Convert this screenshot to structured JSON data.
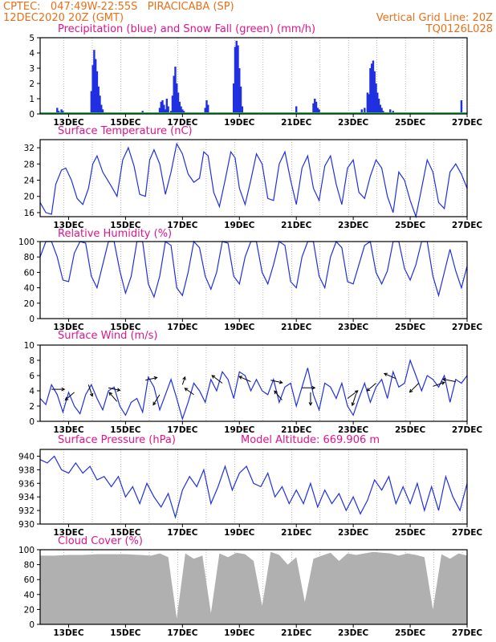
{
  "header": {
    "line1_left": "CPTEC:   047:49W-22:55S   PIRACICABA (SP)",
    "line2_left": "12DEC2020 20Z (GMT)",
    "line2_right": "Vertical Grid Line: 20Z",
    "line3_right": "TQ0126L028"
  },
  "colors": {
    "header": "#e8701a",
    "title": "#e0148c",
    "line": "#2030e0",
    "snow": "#22b14c",
    "cloud": "#b0b0b0",
    "grid": "#888888"
  },
  "x_ticks": [
    "13DEC",
    "15DEC",
    "17DEC",
    "19DEC",
    "21DEC",
    "23DEC",
    "25DEC",
    "27DEC"
  ],
  "chart_data": [
    {
      "type": "bar",
      "title": "Precipitation (blue) and Snow Fall (green) (mm/h)",
      "ylim": [
        0,
        5
      ],
      "yticks": [
        "0",
        "1",
        "2",
        "3",
        "4",
        "5"
      ],
      "series": [
        {
          "name": "Precipitation",
          "x": [
            12.6,
            12.65,
            12.7,
            12.75,
            12.8,
            13.8,
            13.85,
            13.9,
            13.95,
            14.0,
            14.05,
            14.1,
            14.15,
            14.2,
            15.6,
            16.2,
            16.25,
            16.3,
            16.35,
            16.4,
            16.45,
            16.5,
            16.6,
            16.65,
            16.7,
            16.75,
            16.8,
            16.85,
            16.9,
            16.95,
            17.0,
            17.05,
            17.8,
            17.85,
            17.9,
            18.8,
            18.85,
            18.9,
            18.95,
            19.0,
            19.05,
            19.1,
            21.0,
            21.6,
            21.65,
            21.7,
            21.75,
            21.8,
            23.3,
            23.4,
            23.5,
            23.55,
            23.6,
            23.65,
            23.7,
            23.75,
            23.8,
            23.85,
            23.9,
            23.95,
            24.0,
            24.05,
            24.3,
            24.4,
            26.8
          ],
          "values": [
            0.4,
            0.2,
            0.1,
            0.3,
            0.2,
            1.5,
            3.2,
            4.2,
            3.6,
            2.8,
            1.8,
            1.2,
            0.6,
            0.3,
            0.2,
            0.4,
            0.8,
            0.9,
            0.6,
            0.3,
            1.0,
            0.5,
            0.2,
            1.2,
            2.5,
            3.1,
            2.0,
            1.4,
            0.8,
            0.5,
            0.3,
            0.2,
            0.4,
            0.9,
            0.6,
            2.0,
            4.4,
            4.8,
            4.5,
            3.0,
            1.8,
            0.5,
            0.5,
            0.7,
            1.0,
            0.8,
            0.4,
            0.3,
            0.3,
            0.4,
            1.4,
            1.3,
            3.0,
            3.3,
            3.5,
            2.8,
            2.0,
            1.4,
            1.0,
            0.6,
            0.4,
            0.2,
            0.3,
            0.2,
            0.9
          ]
        },
        {
          "name": "Snow Fall",
          "values": [
            0.1
          ]
        }
      ]
    },
    {
      "type": "line",
      "title": "Surface Temperature (nC)",
      "ylim": [
        15,
        34
      ],
      "yticks": [
        "16",
        "20",
        "24",
        "28",
        "32"
      ],
      "series": [
        {
          "x": [
            12.0,
            12.2,
            12.4,
            12.55,
            12.75,
            12.9,
            13.1,
            13.3,
            13.5,
            13.7,
            13.85,
            14.0,
            14.2,
            14.5,
            14.7,
            14.9,
            15.1,
            15.3,
            15.5,
            15.7,
            15.85,
            16.0,
            16.2,
            16.4,
            16.6,
            16.8,
            17.0,
            17.2,
            17.4,
            17.6,
            17.75,
            17.9,
            18.1,
            18.3,
            18.5,
            18.7,
            18.85,
            19.0,
            19.2,
            19.4,
            19.6,
            19.8,
            20.0,
            20.2,
            20.4,
            20.6,
            20.8,
            21.0,
            21.2,
            21.4,
            21.6,
            21.8,
            22.0,
            22.2,
            22.4,
            22.6,
            22.8,
            23.0,
            23.2,
            23.4,
            23.6,
            23.8,
            24.0,
            24.2,
            24.4,
            24.6,
            24.8,
            25.0,
            25.2,
            25.4,
            25.6,
            25.8,
            26.0,
            26.2,
            26.4,
            26.6,
            26.8,
            27.0
          ],
          "values": [
            18.5,
            16.0,
            15.6,
            23.0,
            26.5,
            27.0,
            24.0,
            19.5,
            18.0,
            22.0,
            28.0,
            30.0,
            26.0,
            22.5,
            20.0,
            29.0,
            32.0,
            27.5,
            20.5,
            20.0,
            29.0,
            31.5,
            28.0,
            20.5,
            26.0,
            33.0,
            30.5,
            25.5,
            23.5,
            24.5,
            31.0,
            30.0,
            21.0,
            17.5,
            24.0,
            31.0,
            29.5,
            22.0,
            18.0,
            24.0,
            30.5,
            28.0,
            19.5,
            19.0,
            28.0,
            31.0,
            24.0,
            18.0,
            27.0,
            30.0,
            22.0,
            19.0,
            27.5,
            30.0,
            23.0,
            18.0,
            27.0,
            29.0,
            21.0,
            19.5,
            25.0,
            29.0,
            27.0,
            20.0,
            16.0,
            26.0,
            24.0,
            19.0,
            15.0,
            22.0,
            29.0,
            26.0,
            18.5,
            17.0,
            26.0,
            28.0,
            25.5,
            22.0
          ]
        }
      ]
    },
    {
      "type": "line",
      "title": "Relative Humidity (%)",
      "ylim": [
        0,
        100
      ],
      "yticks": [
        "0",
        "20",
        "40",
        "60",
        "80",
        "100"
      ],
      "series": [
        {
          "x": [
            12.0,
            12.2,
            12.4,
            12.6,
            12.8,
            13.0,
            13.2,
            13.4,
            13.6,
            13.8,
            14.0,
            14.2,
            14.4,
            14.6,
            14.8,
            15.0,
            15.2,
            15.4,
            15.6,
            15.8,
            16.0,
            16.2,
            16.4,
            16.6,
            16.8,
            17.0,
            17.2,
            17.4,
            17.6,
            17.8,
            18.0,
            18.2,
            18.4,
            18.6,
            18.8,
            19.0,
            19.2,
            19.4,
            19.6,
            19.8,
            20.0,
            20.2,
            20.4,
            20.6,
            20.8,
            21.0,
            21.2,
            21.4,
            21.6,
            21.8,
            22.0,
            22.2,
            22.4,
            22.6,
            22.8,
            23.0,
            23.2,
            23.4,
            23.6,
            23.8,
            24.0,
            24.2,
            24.4,
            24.6,
            24.8,
            25.0,
            25.2,
            25.4,
            25.6,
            25.8,
            26.0,
            26.2,
            26.4,
            26.6,
            26.8,
            27.0
          ],
          "values": [
            80,
            100,
            100,
            80,
            50,
            48,
            85,
            100,
            98,
            55,
            40,
            70,
            100,
            100,
            62,
            33,
            55,
            100,
            100,
            45,
            28,
            55,
            100,
            95,
            40,
            30,
            60,
            100,
            92,
            55,
            38,
            60,
            100,
            98,
            55,
            45,
            80,
            100,
            100,
            60,
            45,
            70,
            100,
            95,
            48,
            40,
            80,
            100,
            100,
            55,
            40,
            80,
            100,
            92,
            48,
            45,
            70,
            95,
            100,
            60,
            45,
            62,
            100,
            100,
            65,
            50,
            70,
            100,
            100,
            55,
            30,
            60,
            90,
            62,
            40,
            68
          ]
        }
      ]
    },
    {
      "type": "line",
      "title": "Surface Wind (m/s)",
      "ylim": [
        0,
        10
      ],
      "yticks": [
        "0",
        "2",
        "4",
        "6",
        "8",
        "10"
      ],
      "series": [
        {
          "x": [
            12.0,
            12.2,
            12.4,
            12.6,
            12.8,
            13.0,
            13.2,
            13.4,
            13.6,
            13.8,
            14.0,
            14.2,
            14.4,
            14.6,
            14.8,
            15.0,
            15.2,
            15.4,
            15.6,
            15.8,
            16.0,
            16.2,
            16.4,
            16.6,
            16.8,
            17.0,
            17.2,
            17.4,
            17.6,
            17.8,
            18.0,
            18.2,
            18.4,
            18.6,
            18.8,
            19.0,
            19.2,
            19.4,
            19.6,
            19.8,
            20.0,
            20.2,
            20.4,
            20.6,
            20.8,
            21.0,
            21.2,
            21.4,
            21.6,
            21.8,
            22.0,
            22.2,
            22.4,
            22.6,
            22.8,
            23.0,
            23.2,
            23.4,
            23.6,
            23.8,
            24.0,
            24.2,
            24.4,
            24.6,
            24.8,
            25.0,
            25.2,
            25.4,
            25.6,
            25.8,
            26.0,
            26.2,
            26.4,
            26.6,
            26.8,
            27.0
          ],
          "values": [
            3.0,
            2.2,
            4.8,
            3.5,
            1.2,
            3.8,
            2.0,
            1.0,
            3.5,
            4.8,
            3.0,
            1.5,
            4.0,
            4.5,
            2.0,
            0.8,
            2.5,
            3.0,
            1.2,
            5.8,
            4.5,
            1.5,
            3.5,
            5.5,
            3.0,
            0.3,
            2.5,
            5.0,
            4.0,
            2.5,
            5.5,
            4.0,
            6.5,
            5.5,
            3.0,
            6.5,
            6.0,
            4.0,
            5.5,
            4.0,
            3.5,
            5.5,
            2.5,
            4.5,
            5.0,
            2.0,
            4.5,
            7.0,
            3.5,
            1.5,
            5.0,
            4.5,
            3.0,
            5.0,
            2.0,
            0.8,
            3.0,
            5.0,
            2.5,
            4.5,
            5.5,
            3.0,
            6.5,
            4.5,
            5.0,
            8.0,
            6.0,
            4.0,
            6.0,
            5.5,
            4.5,
            6.0,
            2.5,
            5.5,
            5.0,
            6.0
          ]
        }
      ],
      "arrows": [
        {
          "x": 12.4,
          "y": 4.2,
          "u": 1.0,
          "v": 0.0
        },
        {
          "x": 13.2,
          "y": 3.8,
          "u": -0.7,
          "v": -0.6
        },
        {
          "x": 13.7,
          "y": 4.8,
          "u": 0.3,
          "v": -0.9
        },
        {
          "x": 14.4,
          "y": 4.4,
          "u": 0.9,
          "v": -0.2
        },
        {
          "x": 14.7,
          "y": 2.6,
          "u": -0.6,
          "v": 0.7
        },
        {
          "x": 15.7,
          "y": 5.4,
          "u": 0.9,
          "v": 0.2
        },
        {
          "x": 16.2,
          "y": 3.5,
          "u": -0.5,
          "v": -0.8
        },
        {
          "x": 17.0,
          "y": 4.8,
          "u": 0.2,
          "v": 0.6
        },
        {
          "x": 17.4,
          "y": 3.5,
          "u": -0.7,
          "v": 0.5
        },
        {
          "x": 18.4,
          "y": 5.0,
          "u": -0.8,
          "v": 0.6
        },
        {
          "x": 19.4,
          "y": 5.2,
          "u": -0.9,
          "v": 0.4
        },
        {
          "x": 20.1,
          "y": 5.4,
          "u": 0.9,
          "v": -0.2
        },
        {
          "x": 20.5,
          "y": 2.8,
          "u": -0.6,
          "v": 0.7
        },
        {
          "x": 21.2,
          "y": 4.4,
          "u": 1.0,
          "v": 0.0
        },
        {
          "x": 21.5,
          "y": 3.8,
          "u": 0.0,
          "v": -1.0
        },
        {
          "x": 22.8,
          "y": 3.0,
          "u": 0.8,
          "v": 0.6
        },
        {
          "x": 23.1,
          "y": 3.6,
          "u": -0.3,
          "v": -0.9
        },
        {
          "x": 23.8,
          "y": 5.0,
          "u": -0.7,
          "v": -0.6
        },
        {
          "x": 24.5,
          "y": 5.6,
          "u": -0.9,
          "v": 0.4
        },
        {
          "x": 25.3,
          "y": 5.0,
          "u": -0.7,
          "v": -0.7
        },
        {
          "x": 25.8,
          "y": 4.6,
          "u": 0.9,
          "v": 0.3
        },
        {
          "x": 26.6,
          "y": 5.2,
          "u": -1.0,
          "v": 0.2
        }
      ]
    },
    {
      "type": "line",
      "title": "Surface Pressure (hPa)",
      "subtitle": "Model Altitude: 669.906 m",
      "ylim": [
        930,
        941
      ],
      "yticks": [
        "930",
        "932",
        "934",
        "936",
        "938",
        "940"
      ],
      "series": [
        {
          "x": [
            12.0,
            12.25,
            12.5,
            12.75,
            13.0,
            13.25,
            13.5,
            13.75,
            14.0,
            14.25,
            14.5,
            14.75,
            15.0,
            15.25,
            15.5,
            15.75,
            16.0,
            16.25,
            16.5,
            16.75,
            17.0,
            17.25,
            17.5,
            17.75,
            18.0,
            18.25,
            18.5,
            18.75,
            19.0,
            19.25,
            19.5,
            19.75,
            20.0,
            20.25,
            20.5,
            20.75,
            21.0,
            21.25,
            21.5,
            21.75,
            22.0,
            22.25,
            22.5,
            22.75,
            23.0,
            23.25,
            23.5,
            23.75,
            24.0,
            24.25,
            24.5,
            24.75,
            25.0,
            25.25,
            25.5,
            25.75,
            26.0,
            26.25,
            26.5,
            26.75,
            27.0
          ],
          "values": [
            939.5,
            939.0,
            940.0,
            938.0,
            937.5,
            939.0,
            937.5,
            938.5,
            936.5,
            937.0,
            935.5,
            937.0,
            934.0,
            935.5,
            933.0,
            936.0,
            934.0,
            932.5,
            934.5,
            931.0,
            935.0,
            937.0,
            935.5,
            938.0,
            933.0,
            935.5,
            938.5,
            935.0,
            937.5,
            938.5,
            936.0,
            935.5,
            937.5,
            934.0,
            935.5,
            933.0,
            935.0,
            933.0,
            936.0,
            932.5,
            935.0,
            933.0,
            934.5,
            932.0,
            934.0,
            931.5,
            933.5,
            936.5,
            935.0,
            937.0,
            933.0,
            935.5,
            933.0,
            936.0,
            932.0,
            935.5,
            932.0,
            937.0,
            934.0,
            932.0,
            936.0
          ]
        }
      ]
    },
    {
      "type": "area",
      "title": "Cloud Cover (%)",
      "ylim": [
        0,
        100
      ],
      "yticks": [
        "0",
        "20",
        "40",
        "60",
        "80",
        "100"
      ],
      "series": [
        {
          "x": [
            12.0,
            12.5,
            13.0,
            13.5,
            14.0,
            14.5,
            15.0,
            15.5,
            15.9,
            16.2,
            16.5,
            16.8,
            17.1,
            17.4,
            17.7,
            18.0,
            18.3,
            18.6,
            18.9,
            19.2,
            19.5,
            19.8,
            20.1,
            20.4,
            20.7,
            21.0,
            21.3,
            21.6,
            21.9,
            22.2,
            22.5,
            22.8,
            23.1,
            23.4,
            23.7,
            24.0,
            24.3,
            24.6,
            24.9,
            25.2,
            25.5,
            25.8,
            26.1,
            26.4,
            26.7,
            27.0
          ],
          "values": [
            92,
            92,
            93,
            93,
            94,
            94,
            94,
            93,
            92,
            95,
            90,
            8,
            95,
            88,
            92,
            15,
            95,
            90,
            96,
            94,
            85,
            25,
            97,
            93,
            80,
            90,
            30,
            88,
            92,
            96,
            85,
            95,
            93,
            95,
            97,
            96,
            95,
            92,
            95,
            93,
            90,
            20,
            94,
            88,
            95,
            92
          ]
        }
      ]
    }
  ]
}
